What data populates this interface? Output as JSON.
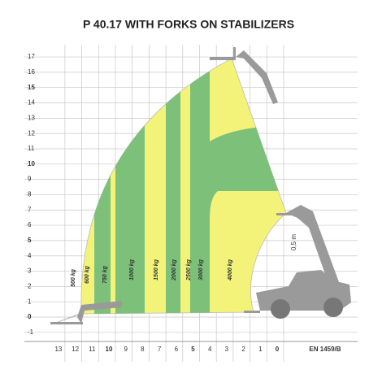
{
  "title": "P 40.17 WITH FORKS ON STABILIZERS",
  "y_axis": {
    "labels": [
      -1,
      0,
      1,
      2,
      3,
      4,
      5,
      6,
      7,
      8,
      9,
      10,
      11,
      12,
      13,
      14,
      15,
      16,
      17
    ]
  },
  "x_axis": {
    "labels": [
      13,
      12,
      11,
      10,
      9,
      8,
      7,
      6,
      5,
      4,
      3,
      2,
      1,
      0
    ]
  },
  "load_labels": [
    "500 kg",
    "600 kg",
    "750 kg",
    "1000 kg",
    "1500 kg",
    "2000 kg",
    "2500 kg",
    "3000 kg",
    "4000 kg"
  ],
  "annotation": "0,5 m",
  "standard": "EN 1459/B"
}
